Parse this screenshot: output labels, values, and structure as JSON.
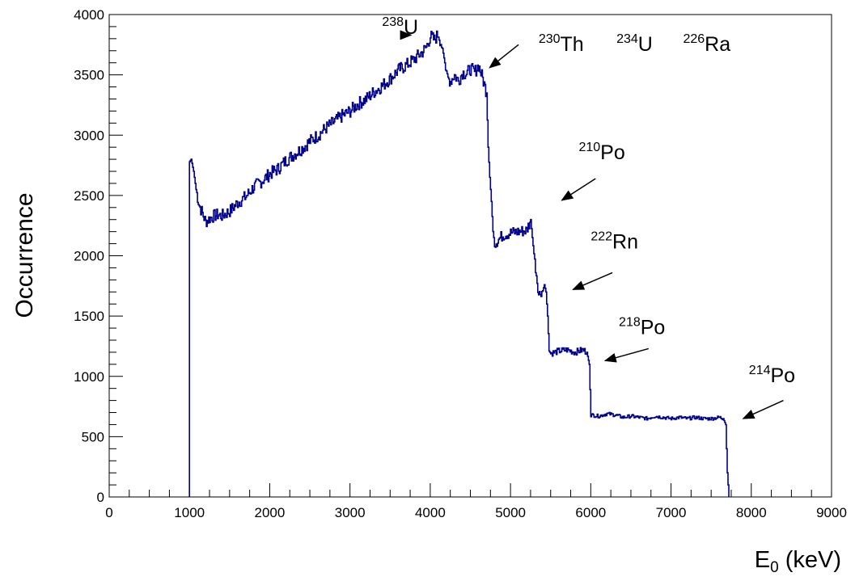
{
  "chart_data": {
    "type": "line",
    "title": "",
    "xlabel_main": "E",
    "xlabel_sub": "0",
    "xlabel_unit": " (keV)",
    "ylabel": "Occurrence",
    "xlim": [
      0,
      9000
    ],
    "ylim": [
      0,
      4000
    ],
    "x_ticks": [
      0,
      1000,
      2000,
      3000,
      4000,
      5000,
      6000,
      7000,
      8000,
      9000
    ],
    "y_ticks": [
      0,
      500,
      1000,
      1500,
      2000,
      2500,
      3000,
      3500,
      4000
    ],
    "grid": false,
    "legend": "none",
    "line_color": "#00008b",
    "series": [
      {
        "x": [
          1000,
          1020,
          1050,
          1080,
          1120,
          1160,
          1200,
          1250,
          1300,
          1350,
          1400,
          1500,
          1600,
          1700,
          1800,
          1900,
          2000,
          2100,
          2200,
          2300,
          2400,
          2500,
          2600,
          2700,
          2800,
          2900,
          3000,
          3100,
          3200,
          3300,
          3400,
          3500,
          3600,
          3700,
          3800,
          3900,
          3950,
          4000,
          4050,
          4100,
          4150,
          4180,
          4200,
          4250,
          4300,
          4350,
          4400,
          4450,
          4500,
          4550,
          4600,
          4650,
          4700,
          4720,
          4740,
          4760,
          4780,
          4800,
          4900,
          5000,
          5100,
          5200,
          5250,
          5270,
          5300,
          5350,
          5400,
          5420,
          5440,
          5460,
          5480,
          5500,
          5600,
          5700,
          5800,
          5900,
          5950,
          5980,
          6000,
          6100,
          6200,
          6300,
          6400,
          6500,
          6600,
          6700,
          6800,
          6900,
          7000,
          7100,
          7200,
          7300,
          7400,
          7500,
          7600,
          7650,
          7680,
          7700,
          7720
        ],
        "y": [
          2780,
          2800,
          2700,
          2550,
          2420,
          2350,
          2280,
          2310,
          2330,
          2340,
          2330,
          2370,
          2440,
          2490,
          2570,
          2620,
          2680,
          2720,
          2790,
          2840,
          2890,
          2950,
          3000,
          3060,
          3110,
          3160,
          3200,
          3260,
          3300,
          3360,
          3410,
          3470,
          3540,
          3580,
          3630,
          3690,
          3730,
          3820,
          3790,
          3840,
          3720,
          3600,
          3480,
          3450,
          3500,
          3450,
          3520,
          3510,
          3550,
          3520,
          3580,
          3470,
          3350,
          2900,
          2650,
          2450,
          2200,
          2100,
          2170,
          2190,
          2200,
          2210,
          2300,
          2150,
          1950,
          1680,
          1710,
          1760,
          1700,
          1500,
          1210,
          1190,
          1210,
          1220,
          1200,
          1220,
          1200,
          1100,
          680,
          670,
          690,
          680,
          660,
          670,
          660,
          650,
          670,
          660,
          650,
          660,
          650,
          660,
          650,
          650,
          660,
          650,
          600,
          200,
          0
        ]
      }
    ],
    "annotations": [
      {
        "base": "U",
        "mass": "238",
        "tx": 3400,
        "ty": 3840,
        "arrow": [
          3740,
          3830,
          3760,
          3830
        ]
      },
      {
        "base": "Th",
        "mass": "230",
        "tx": 5350,
        "ty": 3700,
        "arrow": [
          5100,
          3750,
          4740,
          3560
        ]
      },
      {
        "base": "U",
        "mass": "234",
        "tx": 6320,
        "ty": 3700
      },
      {
        "base": "Ra",
        "mass": "226",
        "tx": 7150,
        "ty": 3700
      },
      {
        "base": "Po",
        "mass": "210",
        "tx": 5850,
        "ty": 2800,
        "arrow": [
          6060,
          2640,
          5640,
          2460
        ]
      },
      {
        "base": "Rn",
        "mass": "222",
        "tx": 6000,
        "ty": 2060,
        "arrow": [
          6270,
          1860,
          5780,
          1720
        ]
      },
      {
        "base": "Po",
        "mass": "218",
        "tx": 6350,
        "ty": 1350,
        "arrow": [
          6720,
          1230,
          6180,
          1130
        ]
      },
      {
        "base": "Po",
        "mass": "214",
        "tx": 7970,
        "ty": 950,
        "arrow": [
          8400,
          800,
          7900,
          650
        ]
      }
    ]
  }
}
